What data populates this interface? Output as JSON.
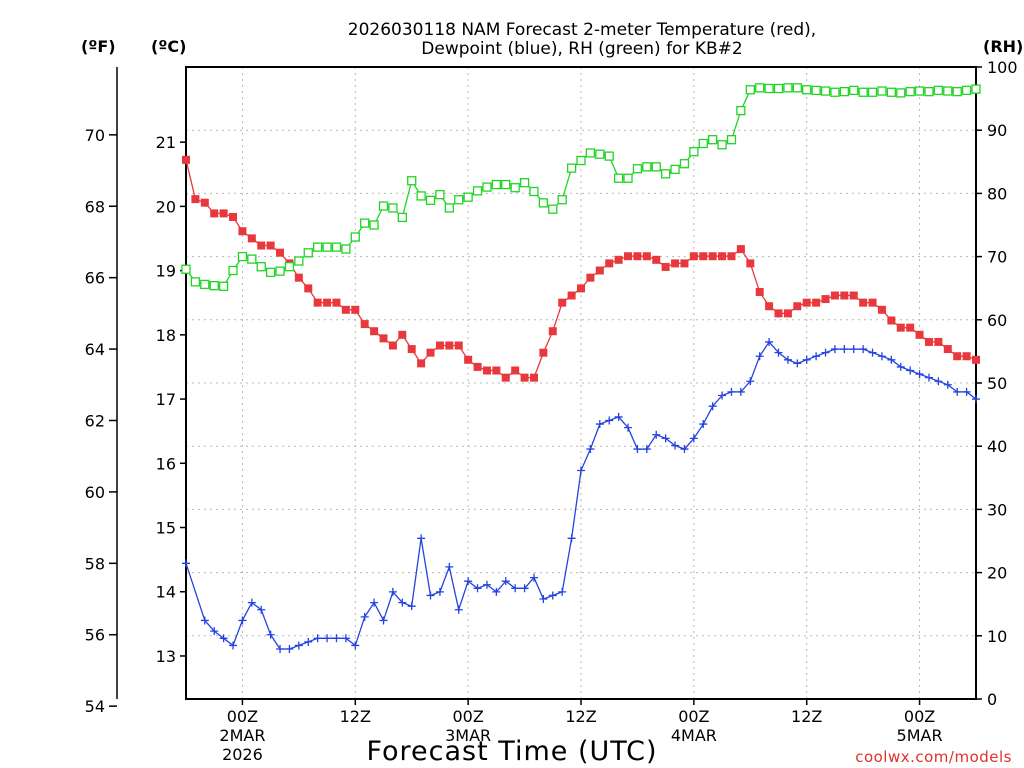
{
  "chart_data": {
    "type": "line",
    "title_line1": "2026030118 NAM Forecast 2-meter Temperature (red),",
    "title_line2": "Dewpoint (blue), RH (green) for KB#2",
    "xlabel": "Forecast Time (UTC)",
    "credit": "coolwx.com/models",
    "units": {
      "f": "(ºF)",
      "c": "(ºC)",
      "rh": "(RH)"
    },
    "x_range_hours": [
      0,
      84
    ],
    "left_f_axis": {
      "ylim": [
        54.2,
        71.9
      ],
      "ticks": [
        "54",
        "56",
        "58",
        "60",
        "62",
        "64",
        "66",
        "68",
        "70"
      ]
    },
    "left_c_axis": {
      "ylim": [
        12.33,
        22.17
      ],
      "ticks": [
        "13",
        "14",
        "15",
        "16",
        "17",
        "18",
        "19",
        "20",
        "21"
      ]
    },
    "right_rh_axis": {
      "ylim": [
        0,
        100
      ],
      "ticks": [
        "0",
        "10",
        "20",
        "30",
        "40",
        "50",
        "60",
        "70",
        "80",
        "90",
        "100"
      ]
    },
    "x_ticks": [
      {
        "hour": 6,
        "label": "00Z",
        "date": "2MAR",
        "year": "2026"
      },
      {
        "hour": 18,
        "label": "12Z",
        "date": "",
        "year": ""
      },
      {
        "hour": 30,
        "label": "00Z",
        "date": "3MAR",
        "year": ""
      },
      {
        "hour": 42,
        "label": "12Z",
        "date": "",
        "year": ""
      },
      {
        "hour": 54,
        "label": "00Z",
        "date": "4MAR",
        "year": ""
      },
      {
        "hour": 66,
        "label": "12Z",
        "date": "",
        "year": ""
      },
      {
        "hour": 78,
        "label": "00Z",
        "date": "5MAR",
        "year": ""
      }
    ],
    "series": [
      {
        "name": "Temperature",
        "axis": "f",
        "color": "#e8383d",
        "marker": "square",
        "x": [
          0,
          1,
          2,
          3,
          4,
          5,
          6,
          7,
          8,
          9,
          10,
          11,
          12,
          13,
          14,
          15,
          16,
          17,
          18,
          19,
          20,
          21,
          22,
          23,
          24,
          25,
          26,
          27,
          28,
          29,
          30,
          31,
          32,
          33,
          34,
          35,
          36,
          37,
          38,
          39,
          40,
          41,
          42,
          43,
          44,
          45,
          46,
          47,
          48,
          49,
          50,
          51,
          52,
          53,
          54,
          55,
          56,
          57,
          58,
          59,
          60,
          61,
          62,
          63,
          64,
          65,
          66,
          67,
          68,
          69,
          70,
          71,
          72,
          73,
          74,
          75,
          76,
          77,
          78,
          79,
          80,
          81,
          82,
          83,
          84
        ],
        "values": [
          69.3,
          68.2,
          68.1,
          67.8,
          67.8,
          67.7,
          67.3,
          67.1,
          66.9,
          66.9,
          66.7,
          66.4,
          66.0,
          65.7,
          65.3,
          65.3,
          65.3,
          65.1,
          65.1,
          64.7,
          64.5,
          64.3,
          64.1,
          64.4,
          64.0,
          63.6,
          63.9,
          64.1,
          64.1,
          64.1,
          63.7,
          63.5,
          63.4,
          63.4,
          63.2,
          63.4,
          63.2,
          63.2,
          63.9,
          64.5,
          65.3,
          65.5,
          65.7,
          66.0,
          66.2,
          66.4,
          66.5,
          66.6,
          66.6,
          66.6,
          66.5,
          66.3,
          66.4,
          66.4,
          66.6,
          66.6,
          66.6,
          66.6,
          66.6,
          66.8,
          66.4,
          65.6,
          65.2,
          65.0,
          65.0,
          65.2,
          65.3,
          65.3,
          65.4,
          65.5,
          65.5,
          65.5,
          65.3,
          65.3,
          65.1,
          64.8,
          64.6,
          64.6,
          64.4,
          64.2,
          64.2,
          64.0,
          63.8,
          63.8,
          63.7
        ]
      },
      {
        "name": "Dewpoint",
        "axis": "f",
        "color": "#2443e0",
        "marker": "plus",
        "x": [
          0,
          2,
          3,
          4,
          5,
          6,
          7,
          8,
          9,
          10,
          11,
          12,
          13,
          14,
          15,
          16,
          17,
          18,
          19,
          20,
          21,
          22,
          23,
          24,
          25,
          26,
          27,
          28,
          29,
          30,
          31,
          32,
          33,
          34,
          35,
          36,
          37,
          38,
          39,
          40,
          41,
          42,
          43,
          44,
          45,
          46,
          47,
          48,
          49,
          50,
          51,
          52,
          53,
          54,
          55,
          56,
          57,
          58,
          59,
          60,
          61,
          62,
          63,
          64,
          65,
          66,
          67,
          68,
          69,
          70,
          71,
          72,
          73,
          74,
          75,
          76,
          77,
          78,
          79,
          80,
          81,
          82,
          83,
          84
        ],
        "values": [
          58.0,
          56.4,
          56.1,
          55.9,
          55.7,
          56.4,
          56.9,
          56.7,
          56.0,
          55.6,
          55.6,
          55.7,
          55.8,
          55.9,
          55.9,
          55.9,
          55.9,
          55.7,
          56.5,
          56.9,
          56.4,
          57.2,
          56.9,
          56.8,
          58.7,
          57.1,
          57.2,
          57.9,
          56.7,
          57.5,
          57.3,
          57.4,
          57.2,
          57.5,
          57.3,
          57.3,
          57.6,
          57.0,
          57.1,
          57.2,
          58.7,
          60.6,
          61.2,
          61.9,
          62.0,
          62.1,
          61.8,
          61.2,
          61.2,
          61.6,
          61.5,
          61.3,
          61.2,
          61.5,
          61.9,
          62.4,
          62.7,
          62.8,
          62.8,
          63.1,
          63.8,
          64.2,
          63.9,
          63.7,
          63.6,
          63.7,
          63.8,
          63.9,
          64.0,
          64.0,
          64.0,
          64.0,
          63.9,
          63.8,
          63.7,
          63.5,
          63.4,
          63.3,
          63.2,
          63.1,
          63.0,
          62.8,
          62.8,
          62.6
        ]
      },
      {
        "name": "RH",
        "axis": "rh",
        "color": "#21d424",
        "marker": "open-square",
        "x": [
          0,
          1,
          2,
          3,
          4,
          5,
          6,
          7,
          8,
          9,
          10,
          11,
          12,
          13,
          14,
          15,
          16,
          17,
          18,
          19,
          20,
          21,
          22,
          23,
          24,
          25,
          26,
          27,
          28,
          29,
          30,
          31,
          32,
          33,
          34,
          35,
          36,
          37,
          38,
          39,
          40,
          41,
          42,
          43,
          44,
          45,
          46,
          47,
          48,
          49,
          50,
          51,
          52,
          53,
          54,
          55,
          56,
          57,
          58,
          59,
          60,
          61,
          62,
          63,
          64,
          65,
          66,
          67,
          68,
          69,
          70,
          71,
          72,
          73,
          74,
          75,
          76,
          77,
          78,
          79,
          80,
          81,
          82,
          83,
          84
        ],
        "values": [
          68.0,
          66.0,
          65.6,
          65.4,
          65.3,
          67.8,
          70.0,
          69.6,
          68.4,
          67.5,
          67.7,
          68.4,
          69.3,
          70.6,
          71.5,
          71.5,
          71.5,
          71.2,
          73.1,
          75.3,
          75.0,
          78.0,
          77.7,
          76.2,
          82.0,
          79.6,
          78.9,
          79.8,
          77.7,
          79.0,
          79.4,
          80.4,
          81.0,
          81.4,
          81.4,
          80.9,
          81.7,
          80.3,
          78.5,
          77.5,
          79.0,
          84.0,
          85.2,
          86.4,
          86.2,
          85.9,
          82.4,
          82.4,
          83.9,
          84.2,
          84.2,
          83.1,
          83.8,
          84.7,
          86.6,
          87.9,
          88.5,
          87.7,
          88.5,
          93.1,
          96.4,
          96.7,
          96.6,
          96.6,
          96.7,
          96.7,
          96.4,
          96.3,
          96.2,
          96.0,
          96.1,
          96.3,
          96.0,
          96.0,
          96.2,
          96.0,
          95.9,
          96.1,
          96.2,
          96.1,
          96.3,
          96.2,
          96.1,
          96.3,
          96.5
        ]
      }
    ]
  }
}
